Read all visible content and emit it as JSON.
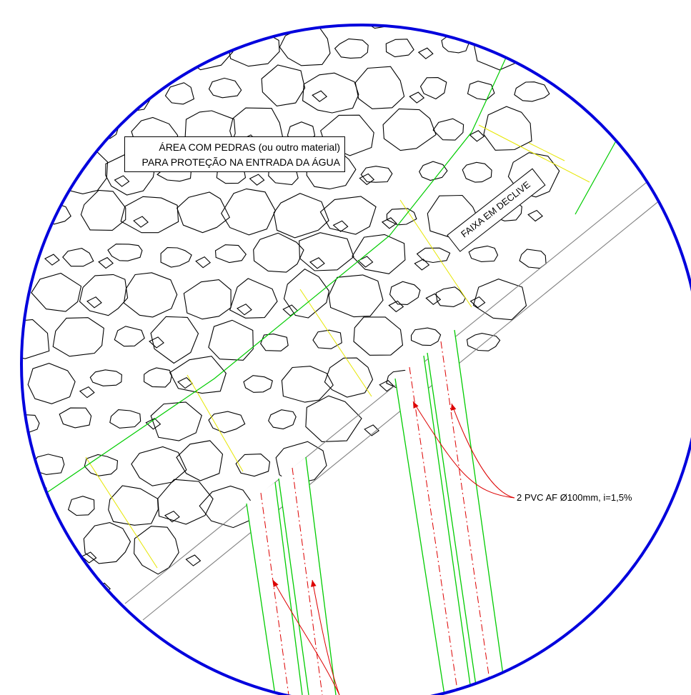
{
  "detail": {
    "stones_label": {
      "line1": "ÁREA COM PEDRAS (ou outro material)",
      "line2": "PARA PROTEÇÃO NA ENTRADA DA ÁGUA"
    },
    "slope_label": "FAIXA EM DECLIVE",
    "pipe_label": "2 PVC AF Ø100mm, i=1,5%"
  },
  "colors": {
    "detail_circle": "#0000dd",
    "stone_outline": "#000000",
    "pipe_wall": "#00cc00",
    "pipe_axis": "#dd0000",
    "leader": "#dd0000",
    "slope_hatch": "#e6e600",
    "wall_line": "#808080"
  }
}
